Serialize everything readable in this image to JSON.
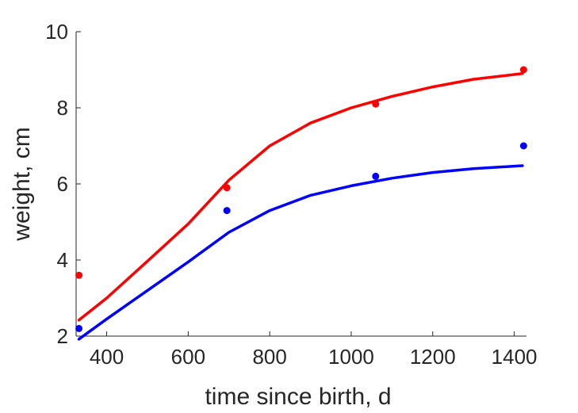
{
  "chart_data": {
    "type": "scatter",
    "xlabel": "time since birth, d",
    "ylabel": "weight, cm",
    "xlim": [
      325,
      1430
    ],
    "ylim": [
      2,
      10
    ],
    "xticks": [
      400,
      600,
      800,
      1000,
      1200,
      1400
    ],
    "yticks": [
      2,
      4,
      6,
      8,
      10
    ],
    "xtick_labels": [
      "400",
      "600",
      "800",
      "1000",
      "1200",
      "1400"
    ],
    "ytick_labels": [
      "2",
      "4",
      "6",
      "8",
      "10"
    ],
    "grid": false,
    "series": [
      {
        "color": "#ff0000",
        "points": [
          {
            "x": 332,
            "y": 3.6
          },
          {
            "x": 695,
            "y": 5.9
          },
          {
            "x": 1060,
            "y": 8.1
          },
          {
            "x": 1423,
            "y": 9.0
          }
        ],
        "fit": [
          {
            "x": 332,
            "y": 2.42
          },
          {
            "x": 400,
            "y": 3.0
          },
          {
            "x": 500,
            "y": 3.97
          },
          {
            "x": 600,
            "y": 4.95
          },
          {
            "x": 700,
            "y": 6.1
          },
          {
            "x": 800,
            "y": 7.0
          },
          {
            "x": 900,
            "y": 7.6
          },
          {
            "x": 1000,
            "y": 8.0
          },
          {
            "x": 1100,
            "y": 8.3
          },
          {
            "x": 1200,
            "y": 8.55
          },
          {
            "x": 1300,
            "y": 8.75
          },
          {
            "x": 1420,
            "y": 8.9
          }
        ]
      },
      {
        "color": "#0000ff",
        "points": [
          {
            "x": 332,
            "y": 2.2
          },
          {
            "x": 695,
            "y": 5.3
          },
          {
            "x": 1060,
            "y": 6.2
          },
          {
            "x": 1423,
            "y": 7.0
          }
        ],
        "fit": [
          {
            "x": 332,
            "y": 1.92
          },
          {
            "x": 400,
            "y": 2.45
          },
          {
            "x": 500,
            "y": 3.2
          },
          {
            "x": 600,
            "y": 3.95
          },
          {
            "x": 700,
            "y": 4.73
          },
          {
            "x": 800,
            "y": 5.3
          },
          {
            "x": 900,
            "y": 5.7
          },
          {
            "x": 1000,
            "y": 5.95
          },
          {
            "x": 1100,
            "y": 6.15
          },
          {
            "x": 1200,
            "y": 6.3
          },
          {
            "x": 1300,
            "y": 6.4
          },
          {
            "x": 1420,
            "y": 6.48
          }
        ]
      }
    ]
  }
}
